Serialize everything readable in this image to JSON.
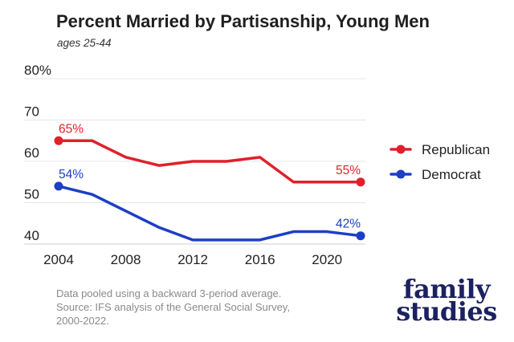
{
  "chart_data": {
    "type": "line",
    "title": "Percent Married by Partisanship, Young Men",
    "subtitle": "ages 25-44",
    "x_ticks": [
      2004,
      2008,
      2012,
      2016,
      2020
    ],
    "y_ticks": [
      {
        "value": 40,
        "label": "40"
      },
      {
        "value": 50,
        "label": "50"
      },
      {
        "value": 60,
        "label": "60"
      },
      {
        "value": 70,
        "label": "70"
      },
      {
        "value": 80,
        "label": "80%"
      }
    ],
    "xlim": [
      2004,
      2022
    ],
    "ylim": [
      40,
      80
    ],
    "grid": true,
    "legend_position": "right",
    "series": [
      {
        "name": "Republican",
        "color": "#e0202b",
        "x": [
          2004,
          2006,
          2008,
          2010,
          2012,
          2014,
          2016,
          2018,
          2020,
          2022
        ],
        "y": [
          65,
          65,
          61,
          59,
          60,
          60,
          61,
          55,
          55,
          55
        ],
        "start_label": "65%",
        "end_label": "55%"
      },
      {
        "name": "Democrat",
        "color": "#1c3fc4",
        "x": [
          2004,
          2006,
          2008,
          2010,
          2012,
          2014,
          2016,
          2018,
          2020,
          2022
        ],
        "y": [
          54,
          52,
          48,
          44,
          41,
          41,
          41,
          43,
          43,
          42
        ],
        "start_label": "54%",
        "end_label": "42%"
      }
    ]
  },
  "footnote": {
    "lines": [
      "Data pooled using a backward 3-period average.",
      "Source: IFS analysis of the General Social Survey,",
      "2000-2022."
    ]
  },
  "logo": {
    "line1": "family",
    "line2": "studies",
    "color": "#1c2160"
  }
}
